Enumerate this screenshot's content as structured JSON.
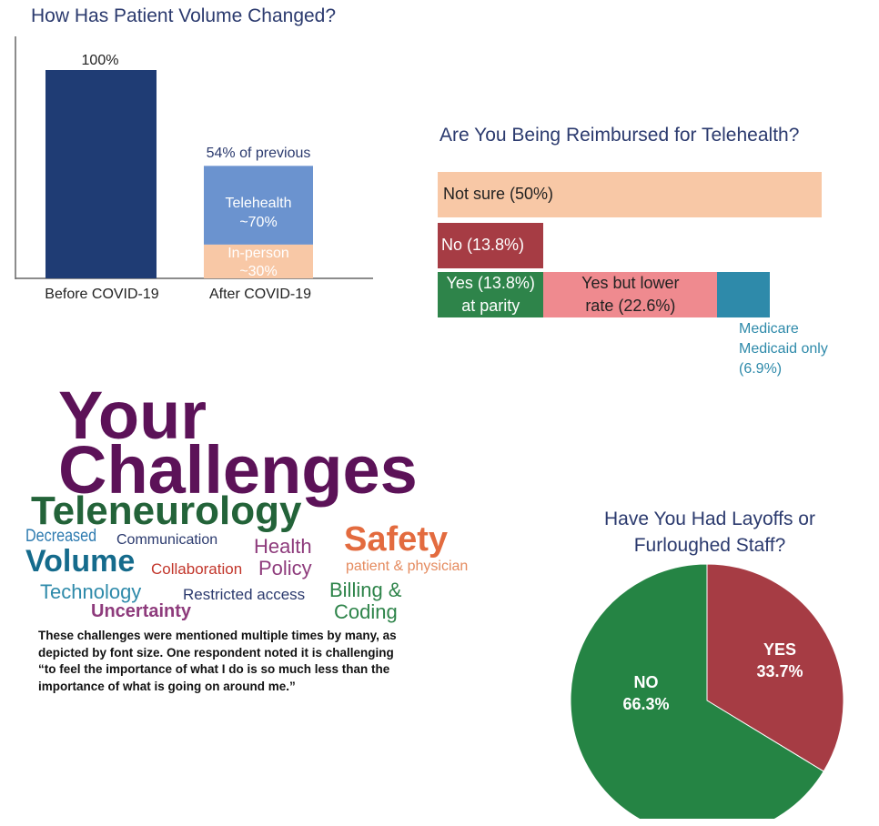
{
  "chart_data": [
    {
      "type": "bar",
      "title": "How Has Patient Volume Changed?",
      "categories": [
        "Before COVID-19",
        "After COVID-19"
      ],
      "values": [
        100,
        54
      ],
      "unit": "%",
      "data_labels": [
        "100%",
        "54% of previous"
      ],
      "stack_after": [
        {
          "label_line1": "Telehealth",
          "label_line2": "~70%",
          "share": 70,
          "color": "#6b93cf"
        },
        {
          "label_line1": "In-person",
          "label_line2": "~30%",
          "share": 30,
          "color": "#f8c8a6"
        }
      ],
      "ylim": [
        0,
        100
      ],
      "bar_color": "#1f3c74"
    },
    {
      "type": "bar",
      "orientation": "horizontal",
      "title": "Are You Being Reimbursed for Telehealth?",
      "rows": [
        {
          "segments": [
            {
              "label": "Not sure (50%)",
              "value": 50,
              "color": "#f8c8a6"
            }
          ]
        },
        {
          "segments": [
            {
              "label": "No (13.8%)",
              "value": 13.8,
              "color": "#a63c44"
            }
          ]
        },
        {
          "segments": [
            {
              "label_line1": "Yes (13.8%)",
              "label_line2": "at parity",
              "value": 13.8,
              "color": "#2e844a"
            },
            {
              "label_line1": "Yes but lower",
              "label_line2": "rate (22.6%)",
              "value": 22.6,
              "color": "#ef8a8f"
            },
            {
              "label_line1": "Medicare",
              "label_line2": "Medicaid only",
              "label_line3": "(6.9%)",
              "value": 6.9,
              "color": "#2e8aaa"
            }
          ]
        }
      ]
    },
    {
      "type": "pie",
      "title_line1": "Have You Had Layoffs or",
      "title_line2": "Furloughed Staff?",
      "slices": [
        {
          "label": "YES",
          "value_label": "33.7%",
          "value": 33.7,
          "color": "#a63c44"
        },
        {
          "label": "NO",
          "value_label": "66.3%",
          "value": 66.3,
          "color": "#258444"
        }
      ]
    }
  ],
  "wordcloud": {
    "title_line1": "Your",
    "title_line2": "Challenges",
    "words": {
      "teleneurology": "Teleneurology",
      "decreased": "Decreased",
      "volume": "Volume",
      "communication": "Communication",
      "collaboration": "Collaboration",
      "health": "Health",
      "policy": "Policy",
      "safety": "Safety",
      "patient_physician": "patient & physician",
      "technology": "Technology",
      "uncertainty": "Uncertainty",
      "restricted": "Restricted access",
      "billing": "Billing &",
      "coding": "Coding"
    },
    "note_lines": [
      "These challenges were mentioned multiple times by  many, as",
      "depicted by font size. One respondent noted it is challenging",
      "“to feel the importance of what I do is so much less than the",
      "importance of what is going on around me.”"
    ]
  }
}
